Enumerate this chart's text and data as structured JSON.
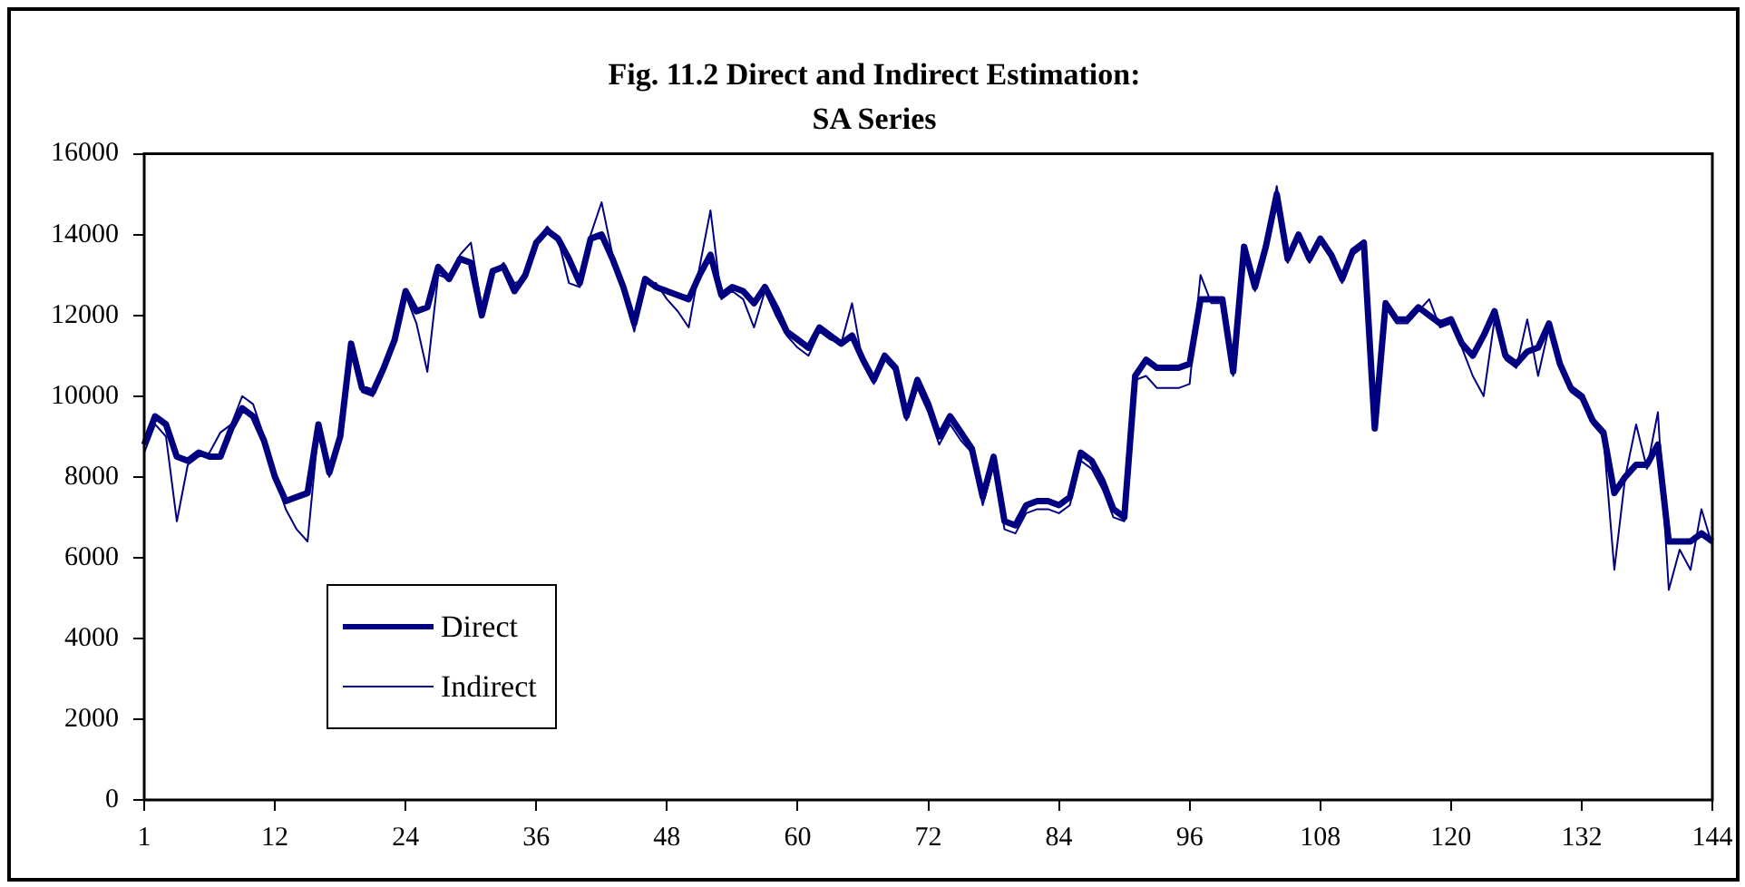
{
  "chart_data": {
    "type": "line",
    "title": "Fig. 11.2 Direct and Indirect Estimation:",
    "subtitle": "SA Series",
    "categories": [
      "1",
      null,
      null,
      null,
      null,
      null,
      null,
      null,
      null,
      null,
      null,
      null,
      "12",
      null,
      null,
      null,
      null,
      null,
      null,
      null,
      null,
      null,
      null,
      null,
      "24",
      null,
      null,
      null,
      null,
      null,
      null,
      null,
      null,
      null,
      null,
      null,
      "36",
      null,
      null,
      null,
      null,
      null,
      null,
      null,
      null,
      null,
      null,
      null,
      "48",
      null,
      null,
      null,
      null,
      null,
      null,
      null,
      null,
      null,
      null,
      null,
      "60",
      null,
      null,
      null,
      null,
      null,
      null,
      null,
      null,
      null,
      null,
      null,
      "72",
      null,
      null,
      null,
      null,
      null,
      null,
      null,
      null,
      null,
      null,
      null,
      "84",
      null,
      null,
      null,
      null,
      null,
      null,
      null,
      null,
      null,
      null,
      null,
      "96",
      null,
      null,
      null,
      null,
      null,
      null,
      null,
      null,
      null,
      null,
      null,
      "108",
      null,
      null,
      null,
      null,
      null,
      null,
      null,
      null,
      null,
      null,
      null,
      "120",
      null,
      null,
      null,
      null,
      null,
      null,
      null,
      null,
      null,
      null,
      null,
      "132",
      null,
      null,
      null,
      null,
      null,
      null,
      null,
      null,
      null,
      null,
      null,
      "144"
    ],
    "series": [
      {
        "name": "Direct",
        "color": "#000080",
        "values": [
          8800,
          9500,
          9300,
          8500,
          8400,
          8600,
          8500,
          8500,
          9200,
          9700,
          9500,
          8900,
          8000,
          7400,
          7500,
          7600,
          9300,
          8100,
          9000,
          11300,
          10200,
          10100,
          10700,
          11400,
          12600,
          12100,
          12200,
          13200,
          12900,
          13400,
          13300,
          12000,
          13100,
          13200,
          12600,
          13000,
          13800,
          14100,
          13900,
          13400,
          12800,
          13900,
          14000,
          13400,
          12700,
          11800,
          12900,
          12700,
          12600,
          12500,
          12400,
          13000,
          13500,
          12500,
          12700,
          12600,
          12300,
          12700,
          12200,
          11600,
          11400,
          11200,
          11700,
          11500,
          11300,
          11500,
          10900,
          10400,
          11000,
          10700,
          9500,
          10400,
          9800,
          9000,
          9500,
          9100,
          8700,
          7500,
          8500,
          6900,
          6800,
          7300,
          7400,
          7400,
          7300,
          7500,
          8600,
          8400,
          7900,
          7200,
          7000,
          10500,
          10900,
          10700,
          10700,
          10700,
          10800,
          12400,
          12400,
          12400,
          10600,
          13700,
          12700,
          13700,
          15000,
          13400,
          14000,
          13400,
          13900,
          13500,
          12900,
          13600,
          13800,
          9200,
          12300,
          11900,
          11900,
          12200,
          12000,
          11800,
          11900,
          11300,
          11000,
          11500,
          12100,
          11000,
          10800,
          11100,
          11200,
          11800,
          10800,
          10200,
          10000,
          9400,
          9100,
          7600,
          8000,
          8300,
          8300,
          8800,
          6400,
          6400,
          6400,
          6600,
          6400
        ]
      },
      {
        "name": "Indirect",
        "color": "#000080",
        "values": [
          8600,
          9300,
          9000,
          6900,
          8300,
          8500,
          8600,
          9100,
          9300,
          10000,
          9800,
          9000,
          8000,
          7200,
          6700,
          6400,
          9200,
          8000,
          8900,
          11200,
          10100,
          10000,
          10600,
          11300,
          12500,
          11800,
          10600,
          13000,
          12900,
          13500,
          13800,
          12200,
          13000,
          13300,
          12800,
          12900,
          13700,
          14200,
          13900,
          12800,
          12700,
          14000,
          14800,
          13500,
          12600,
          11600,
          12800,
          12800,
          12400,
          12100,
          11700,
          13200,
          14600,
          12400,
          12600,
          12400,
          11700,
          12600,
          12000,
          11500,
          11200,
          11000,
          11600,
          11400,
          11300,
          12300,
          10800,
          10300,
          10900,
          10600,
          9400,
          10200,
          9600,
          8800,
          9300,
          8900,
          8600,
          7300,
          8300,
          6700,
          6600,
          7100,
          7200,
          7200,
          7100,
          7300,
          8400,
          8200,
          7700,
          7000,
          6900,
          10400,
          10500,
          10200,
          10200,
          10200,
          10300,
          13000,
          12300,
          12300,
          10500,
          13600,
          12600,
          13600,
          15200,
          13300,
          13900,
          13300,
          13800,
          13400,
          12800,
          13500,
          13700,
          9400,
          12200,
          11800,
          11800,
          12100,
          12400,
          11700,
          11800,
          11200,
          10500,
          10000,
          11900,
          10900,
          10700,
          11900,
          10500,
          11700,
          10700,
          10100,
          9900,
          9300,
          9000,
          5700,
          8000,
          9300,
          8200,
          9600,
          5200,
          6200,
          5700,
          7200,
          6300
        ]
      }
    ],
    "ylim": [
      0,
      16000
    ],
    "yticks": [
      0,
      2000,
      4000,
      6000,
      8000,
      10000,
      12000,
      14000,
      16000
    ],
    "grid": false,
    "legend": "bottom left",
    "marker": "none",
    "line_style": "solid"
  }
}
